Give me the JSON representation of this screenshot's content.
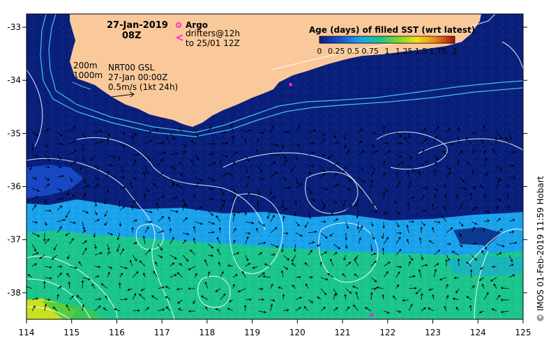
{
  "title": {
    "date": "27-Jan-2019",
    "time": "08Z"
  },
  "legend_argo": {
    "title": "Argo",
    "line1": "drifters@12h",
    "line2": "to 25/01 12Z"
  },
  "legend_age": {
    "title": "Age (days) of filled SST (wrt latest)",
    "ticks": [
      "0",
      "0.25",
      "0.5",
      "0.75",
      "1",
      "1.25",
      "1.5",
      "1.75",
      "2"
    ]
  },
  "annotations": {
    "isobath_200": "200m",
    "isobath_1000": "1000m",
    "product": "NRT00 GSL",
    "product_time": "27-Jan 00:00Z",
    "scale": "0.5m/s (1kt 24h)"
  },
  "axes": {
    "x_ticks": [
      "114",
      "115",
      "116",
      "117",
      "118",
      "119",
      "120",
      "121",
      "122",
      "123",
      "124",
      "125"
    ],
    "y_ticks": [
      "-33",
      "-34",
      "-35",
      "-36",
      "-37",
      "-38"
    ]
  },
  "credit": "© IMOS 01-Feb-2019 11:59 Hobart",
  "colors": {
    "land": "#fac99b",
    "deep_navy": "#0a1f7a",
    "band_light_blue": "#1aa3ec",
    "band_teal": "#1cc58c",
    "band_yellow": "#c8e020"
  },
  "markers": [
    {
      "label": "argo-float",
      "lon": 119.85,
      "lat": -34.08
    },
    {
      "label": "argo-float",
      "lon": 121.65,
      "lat": -38.42
    }
  ]
}
